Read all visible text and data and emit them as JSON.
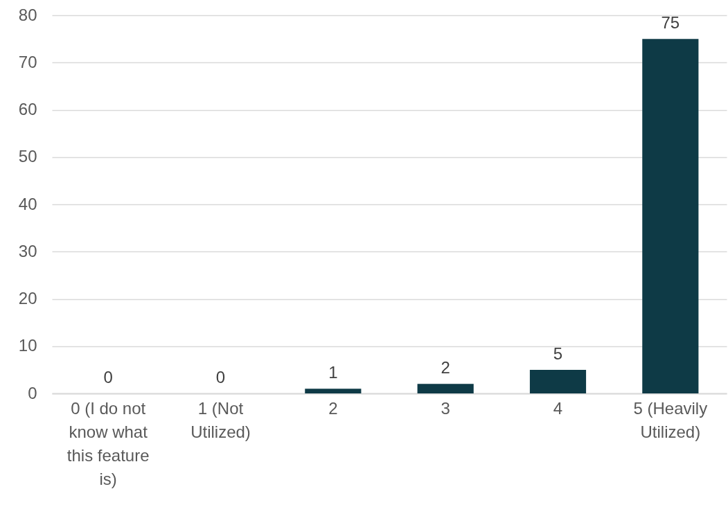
{
  "chart_data": {
    "type": "bar",
    "categories": [
      "0 (I do not know what this feature is)",
      "1 (Not Utilized)",
      "2",
      "3",
      "4",
      "5 (Heavily Utilized)"
    ],
    "values": [
      0,
      0,
      1,
      2,
      5,
      75
    ],
    "color": "#0e3a46",
    "data_labels": true,
    "ylim": [
      0,
      80
    ],
    "yticks": [
      0,
      10,
      20,
      30,
      40,
      50,
      60,
      70,
      80
    ],
    "grid": "y"
  }
}
